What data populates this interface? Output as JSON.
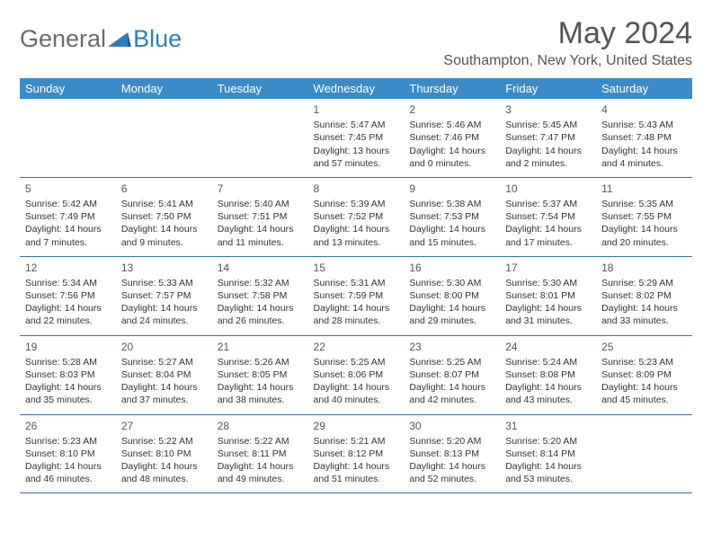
{
  "brand": {
    "part1": "General",
    "part2": "Blue"
  },
  "header": {
    "month_title": "May 2024",
    "location": "Southampton, New York, United States"
  },
  "colors": {
    "header_bg": "#3b8bc9",
    "header_fg": "#ffffff",
    "row_border": "#3b6da0",
    "title_color": "#555555",
    "body_text": "#333333",
    "brand_gray": "#6b6b6b",
    "brand_blue": "#2b7fbd"
  },
  "layout": {
    "columns": 7
  },
  "weekdays": [
    "Sunday",
    "Monday",
    "Tuesday",
    "Wednesday",
    "Thursday",
    "Friday",
    "Saturday"
  ],
  "weeks": [
    [
      null,
      null,
      null,
      {
        "n": "1",
        "sr": "Sunrise: 5:47 AM",
        "ss": "Sunset: 7:45 PM",
        "dl1": "Daylight: 13 hours",
        "dl2": "and 57 minutes."
      },
      {
        "n": "2",
        "sr": "Sunrise: 5:46 AM",
        "ss": "Sunset: 7:46 PM",
        "dl1": "Daylight: 14 hours",
        "dl2": "and 0 minutes."
      },
      {
        "n": "3",
        "sr": "Sunrise: 5:45 AM",
        "ss": "Sunset: 7:47 PM",
        "dl1": "Daylight: 14 hours",
        "dl2": "and 2 minutes."
      },
      {
        "n": "4",
        "sr": "Sunrise: 5:43 AM",
        "ss": "Sunset: 7:48 PM",
        "dl1": "Daylight: 14 hours",
        "dl2": "and 4 minutes."
      }
    ],
    [
      {
        "n": "5",
        "sr": "Sunrise: 5:42 AM",
        "ss": "Sunset: 7:49 PM",
        "dl1": "Daylight: 14 hours",
        "dl2": "and 7 minutes."
      },
      {
        "n": "6",
        "sr": "Sunrise: 5:41 AM",
        "ss": "Sunset: 7:50 PM",
        "dl1": "Daylight: 14 hours",
        "dl2": "and 9 minutes."
      },
      {
        "n": "7",
        "sr": "Sunrise: 5:40 AM",
        "ss": "Sunset: 7:51 PM",
        "dl1": "Daylight: 14 hours",
        "dl2": "and 11 minutes."
      },
      {
        "n": "8",
        "sr": "Sunrise: 5:39 AM",
        "ss": "Sunset: 7:52 PM",
        "dl1": "Daylight: 14 hours",
        "dl2": "and 13 minutes."
      },
      {
        "n": "9",
        "sr": "Sunrise: 5:38 AM",
        "ss": "Sunset: 7:53 PM",
        "dl1": "Daylight: 14 hours",
        "dl2": "and 15 minutes."
      },
      {
        "n": "10",
        "sr": "Sunrise: 5:37 AM",
        "ss": "Sunset: 7:54 PM",
        "dl1": "Daylight: 14 hours",
        "dl2": "and 17 minutes."
      },
      {
        "n": "11",
        "sr": "Sunrise: 5:35 AM",
        "ss": "Sunset: 7:55 PM",
        "dl1": "Daylight: 14 hours",
        "dl2": "and 20 minutes."
      }
    ],
    [
      {
        "n": "12",
        "sr": "Sunrise: 5:34 AM",
        "ss": "Sunset: 7:56 PM",
        "dl1": "Daylight: 14 hours",
        "dl2": "and 22 minutes."
      },
      {
        "n": "13",
        "sr": "Sunrise: 5:33 AM",
        "ss": "Sunset: 7:57 PM",
        "dl1": "Daylight: 14 hours",
        "dl2": "and 24 minutes."
      },
      {
        "n": "14",
        "sr": "Sunrise: 5:32 AM",
        "ss": "Sunset: 7:58 PM",
        "dl1": "Daylight: 14 hours",
        "dl2": "and 26 minutes."
      },
      {
        "n": "15",
        "sr": "Sunrise: 5:31 AM",
        "ss": "Sunset: 7:59 PM",
        "dl1": "Daylight: 14 hours",
        "dl2": "and 28 minutes."
      },
      {
        "n": "16",
        "sr": "Sunrise: 5:30 AM",
        "ss": "Sunset: 8:00 PM",
        "dl1": "Daylight: 14 hours",
        "dl2": "and 29 minutes."
      },
      {
        "n": "17",
        "sr": "Sunrise: 5:30 AM",
        "ss": "Sunset: 8:01 PM",
        "dl1": "Daylight: 14 hours",
        "dl2": "and 31 minutes."
      },
      {
        "n": "18",
        "sr": "Sunrise: 5:29 AM",
        "ss": "Sunset: 8:02 PM",
        "dl1": "Daylight: 14 hours",
        "dl2": "and 33 minutes."
      }
    ],
    [
      {
        "n": "19",
        "sr": "Sunrise: 5:28 AM",
        "ss": "Sunset: 8:03 PM",
        "dl1": "Daylight: 14 hours",
        "dl2": "and 35 minutes."
      },
      {
        "n": "20",
        "sr": "Sunrise: 5:27 AM",
        "ss": "Sunset: 8:04 PM",
        "dl1": "Daylight: 14 hours",
        "dl2": "and 37 minutes."
      },
      {
        "n": "21",
        "sr": "Sunrise: 5:26 AM",
        "ss": "Sunset: 8:05 PM",
        "dl1": "Daylight: 14 hours",
        "dl2": "and 38 minutes."
      },
      {
        "n": "22",
        "sr": "Sunrise: 5:25 AM",
        "ss": "Sunset: 8:06 PM",
        "dl1": "Daylight: 14 hours",
        "dl2": "and 40 minutes."
      },
      {
        "n": "23",
        "sr": "Sunrise: 5:25 AM",
        "ss": "Sunset: 8:07 PM",
        "dl1": "Daylight: 14 hours",
        "dl2": "and 42 minutes."
      },
      {
        "n": "24",
        "sr": "Sunrise: 5:24 AM",
        "ss": "Sunset: 8:08 PM",
        "dl1": "Daylight: 14 hours",
        "dl2": "and 43 minutes."
      },
      {
        "n": "25",
        "sr": "Sunrise: 5:23 AM",
        "ss": "Sunset: 8:09 PM",
        "dl1": "Daylight: 14 hours",
        "dl2": "and 45 minutes."
      }
    ],
    [
      {
        "n": "26",
        "sr": "Sunrise: 5:23 AM",
        "ss": "Sunset: 8:10 PM",
        "dl1": "Daylight: 14 hours",
        "dl2": "and 46 minutes."
      },
      {
        "n": "27",
        "sr": "Sunrise: 5:22 AM",
        "ss": "Sunset: 8:10 PM",
        "dl1": "Daylight: 14 hours",
        "dl2": "and 48 minutes."
      },
      {
        "n": "28",
        "sr": "Sunrise: 5:22 AM",
        "ss": "Sunset: 8:11 PM",
        "dl1": "Daylight: 14 hours",
        "dl2": "and 49 minutes."
      },
      {
        "n": "29",
        "sr": "Sunrise: 5:21 AM",
        "ss": "Sunset: 8:12 PM",
        "dl1": "Daylight: 14 hours",
        "dl2": "and 51 minutes."
      },
      {
        "n": "30",
        "sr": "Sunrise: 5:20 AM",
        "ss": "Sunset: 8:13 PM",
        "dl1": "Daylight: 14 hours",
        "dl2": "and 52 minutes."
      },
      {
        "n": "31",
        "sr": "Sunrise: 5:20 AM",
        "ss": "Sunset: 8:14 PM",
        "dl1": "Daylight: 14 hours",
        "dl2": "and 53 minutes."
      },
      null
    ]
  ]
}
